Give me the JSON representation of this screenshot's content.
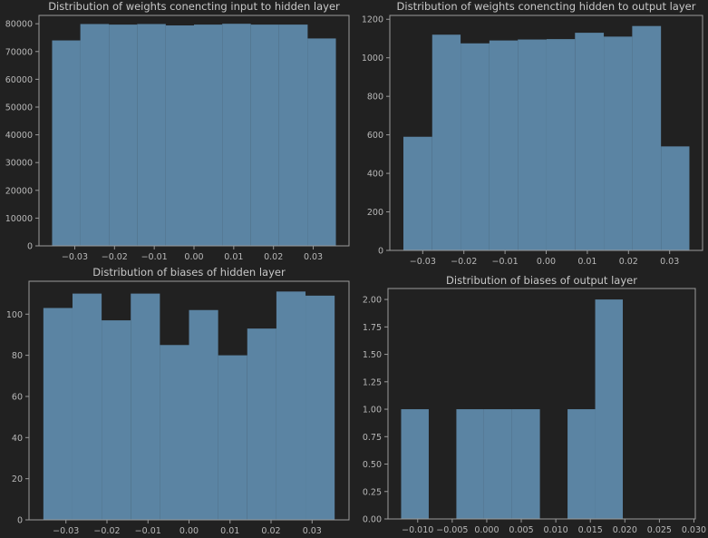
{
  "figure": {
    "background": "#212121",
    "bar_color": "#5b84a3",
    "axis_color": "#9a9a9a",
    "text_color": "#c8c8c8"
  },
  "chart_data": [
    {
      "type": "bar",
      "title": "Distribution of weights conencting input to hidden layer",
      "xlabel": "",
      "ylabel": "",
      "bin_edges": [
        -0.0357,
        -0.0286,
        -0.0214,
        -0.0143,
        -0.0071,
        0.0,
        0.0071,
        0.0143,
        0.0214,
        0.0286,
        0.0357
      ],
      "values": [
        74000,
        79900,
        79700,
        79900,
        79400,
        79700,
        80000,
        79700,
        79700,
        74700
      ],
      "xlim": [
        -0.039,
        0.039
      ],
      "ylim": [
        0,
        83000
      ],
      "xticks": [
        -0.03,
        -0.02,
        -0.01,
        0.0,
        0.01,
        0.02,
        0.03
      ],
      "xtick_labels": [
        "−0.03",
        "−0.02",
        "−0.01",
        "0.00",
        "0.01",
        "0.02",
        "0.03"
      ],
      "yticks": [
        0,
        10000,
        20000,
        30000,
        40000,
        50000,
        60000,
        70000,
        80000
      ],
      "ytick_labels": [
        "0",
        "10000",
        "20000",
        "30000",
        "40000",
        "50000",
        "60000",
        "70000",
        "80000"
      ]
    },
    {
      "type": "bar",
      "title": "Distribution of weights conencting hidden to output layer",
      "xlabel": "",
      "ylabel": "",
      "bin_edges": [
        -0.0347,
        -0.0277,
        -0.0208,
        -0.0138,
        -0.0069,
        0.0001,
        0.007,
        0.014,
        0.0209,
        0.0279,
        0.0348
      ],
      "values": [
        590,
        1120,
        1075,
        1090,
        1095,
        1097,
        1130,
        1110,
        1165,
        540
      ],
      "xlim": [
        -0.038,
        0.038
      ],
      "ylim": [
        0,
        1220
      ],
      "xticks": [
        -0.03,
        -0.02,
        -0.01,
        0.0,
        0.01,
        0.02,
        0.03
      ],
      "xtick_labels": [
        "−0.03",
        "−0.02",
        "−0.01",
        "0.00",
        "0.01",
        "0.02",
        "0.03"
      ],
      "yticks": [
        0,
        200,
        400,
        600,
        800,
        1000,
        1200
      ],
      "ytick_labels": [
        "0",
        "200",
        "400",
        "600",
        "800",
        "1000",
        "1200"
      ]
    },
    {
      "type": "bar",
      "title": "Distribution of biases of hidden layer",
      "xlabel": "",
      "ylabel": "",
      "bin_edges": [
        -0.0355,
        -0.0284,
        -0.0213,
        -0.0142,
        -0.0071,
        0.0,
        0.0071,
        0.0142,
        0.0213,
        0.0284,
        0.0355
      ],
      "values": [
        103,
        110,
        97,
        110,
        85,
        102,
        80,
        93,
        111,
        109
      ],
      "xlim": [
        -0.039,
        0.039
      ],
      "ylim": [
        0,
        116
      ],
      "xticks": [
        -0.03,
        -0.02,
        -0.01,
        0.0,
        0.01,
        0.02,
        0.03
      ],
      "xtick_labels": [
        "−0.03",
        "−0.02",
        "−0.01",
        "0.00",
        "0.01",
        "0.02",
        "0.03"
      ],
      "yticks": [
        0,
        20,
        40,
        60,
        80,
        100
      ],
      "ytick_labels": [
        "0",
        "20",
        "40",
        "60",
        "80",
        "100"
      ]
    },
    {
      "type": "bar",
      "title": "Distribution of biases of output layer",
      "xlabel": "",
      "ylabel": "",
      "bin_edges": [
        -0.0124,
        -0.0084,
        -0.0044,
        -0.0004,
        0.0036,
        0.0077,
        0.0117,
        0.0157,
        0.0197,
        0.0237,
        0.0277
      ],
      "values": [
        1,
        0,
        1,
        1,
        1,
        0,
        1,
        2,
        0,
        0
      ],
      "xlim": [
        -0.0143,
        0.0302
      ],
      "ylim": [
        0,
        2.1
      ],
      "xticks": [
        -0.01,
        -0.005,
        0.0,
        0.005,
        0.01,
        0.015,
        0.02,
        0.025,
        0.03
      ],
      "xtick_labels": [
        "−0.010",
        "−0.005",
        "0.000",
        "0.005",
        "0.010",
        "0.015",
        "0.020",
        "0.025",
        "0.030"
      ],
      "yticks": [
        0,
        0.25,
        0.5,
        0.75,
        1.0,
        1.25,
        1.5,
        1.75,
        2.0
      ],
      "ytick_labels": [
        "0.00",
        "0.25",
        "0.50",
        "0.75",
        "1.00",
        "1.25",
        "1.50",
        "1.75",
        "2.00"
      ]
    }
  ]
}
